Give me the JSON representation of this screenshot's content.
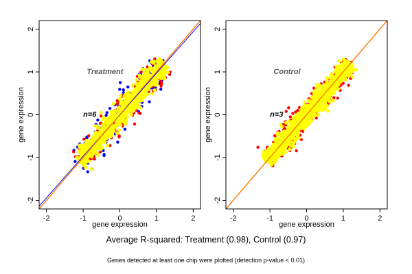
{
  "chart_data": [
    {
      "type": "scatter",
      "title": "Treatment",
      "annotation": "n=6",
      "xlabel": "gene expression",
      "ylabel": "gene expression",
      "xlim": [
        -2.2,
        2.2
      ],
      "ylim": [
        -2.2,
        2.2
      ],
      "xticks": [
        "-2",
        "-1",
        "0",
        "1",
        "2"
      ],
      "yticks": [
        "-2",
        "-1",
        "0",
        "1",
        "2"
      ],
      "grid": false,
      "cloud": {
        "x_range": [
          -1.1,
          1.2
        ],
        "spread": 0.15,
        "colors": [
          "#ffff00",
          "#0000ff",
          "#ff0000"
        ]
      },
      "reference_lines": [
        {
          "color": "#ff0000",
          "slope": 1.0,
          "intercept": 0.0
        },
        {
          "color": "#0000ff",
          "slope": 0.97,
          "intercept": 0.0
        },
        {
          "color": "#ffa500",
          "slope": 1.0,
          "intercept": 0.01
        }
      ]
    },
    {
      "type": "scatter",
      "title": "Control",
      "annotation": "n=3",
      "xlabel": "gene expression",
      "ylabel": "gene expression",
      "xlim": [
        -2.2,
        2.2
      ],
      "ylim": [
        -2.2,
        2.2
      ],
      "xticks": [
        "-2",
        "-1",
        "0",
        "1",
        "2"
      ],
      "yticks": [
        "-2",
        "-1",
        "0",
        "1",
        "2"
      ],
      "grid": false,
      "cloud": {
        "x_range": [
          -1.1,
          1.2
        ],
        "spread": 0.14,
        "colors": [
          "#ffff00",
          "#ff0000"
        ]
      },
      "reference_lines": [
        {
          "color": "#ff0000",
          "slope": 1.0,
          "intercept": 0.0
        },
        {
          "color": "#ffa500",
          "slope": 1.0,
          "intercept": 0.01
        }
      ]
    }
  ],
  "footer": {
    "summary": "Average R-squared: Treatment (0.98), Control (0.97)",
    "note": "Genes detected at least one chip were plotted (detection p-value < 0.01)"
  }
}
